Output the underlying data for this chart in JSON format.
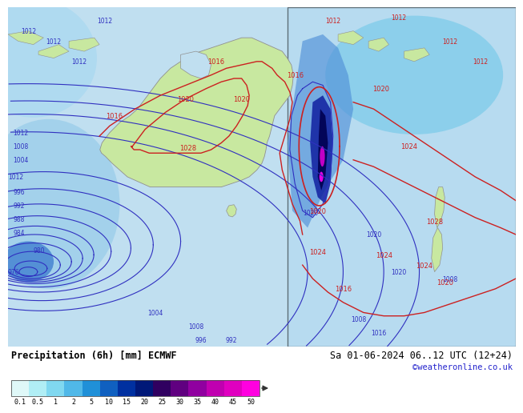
{
  "title_left": "Precipitation (6h) [mm] ECMWF",
  "title_right": "Sa 01-06-2024 06..12 UTC (12+24)",
  "credit": "©weatheronline.co.uk",
  "colorbar_levels": [
    0.1,
    0.5,
    1,
    2,
    5,
    10,
    15,
    20,
    25,
    30,
    35,
    40,
    45,
    50
  ],
  "colorbar_colors": [
    "#dff8f8",
    "#b0eef5",
    "#80d8f0",
    "#50b8e8",
    "#2090d8",
    "#1060c0",
    "#0030a0",
    "#001878",
    "#300060",
    "#600080",
    "#9000a0",
    "#c000b0",
    "#e000c0",
    "#ff00e0"
  ],
  "ocean_color": "#c0dff0",
  "land_color": "#c8e8a0",
  "precip_light_color": "#b0d8f0",
  "bg_white": "#f0f0f0",
  "blue_line_color": "#3030c0",
  "red_line_color": "#cc2020",
  "label_font": 6.5,
  "info_bg": "#ffffff"
}
